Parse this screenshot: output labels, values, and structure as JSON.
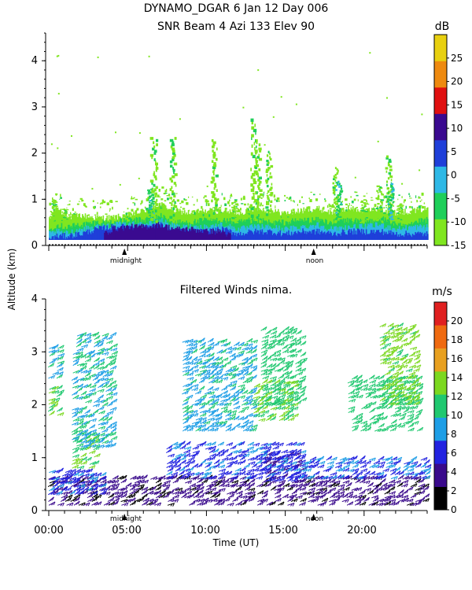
{
  "header": {
    "title_line1": "DYNAMO_DGAR    6 Jan 12 Day 006",
    "title_line2": "SNR Beam 4 Azi 133 Elev 90"
  },
  "shared": {
    "ylabel": "Altitude (km)",
    "xlabel": "Time (UT)",
    "x_tick_labels": [
      "00:00",
      "05:00",
      "10:00",
      "15:00",
      "20:00"
    ],
    "markers": [
      "midnight",
      "noon"
    ]
  },
  "colors": {
    "snr_scale": [
      "#80e620",
      "#1fcf5a",
      "#2eb8e6",
      "#1f3fd9",
      "#3a0a90",
      "#e01010",
      "#ee8a10",
      "#e8d010"
    ],
    "wind_scale": [
      "#000000",
      "#3a0a8c",
      "#2222e0",
      "#1e9ee6",
      "#20c870",
      "#7cd820",
      "#e8a020",
      "#ef6a10",
      "#e02020"
    ]
  },
  "chart_data": [
    {
      "type": "heatmap",
      "title": "SNR Beam 4 Azi 133 Elev 90",
      "ylabel": "Altitude (km)",
      "xlim_hours": [
        0,
        24
      ],
      "ylim_km": [
        0,
        4.6
      ],
      "y_ticks": [
        0,
        1,
        2,
        3,
        4
      ],
      "colorbar": {
        "unit": "dB",
        "range": [
          -15,
          30
        ],
        "ticks": [
          -15,
          -10,
          -5,
          0,
          5,
          10,
          15,
          20,
          25
        ]
      },
      "layers": [
        {
          "dB": -15,
          "x": [
            0,
            0.5,
            1,
            2,
            3,
            4,
            5,
            6,
            7,
            8,
            9,
            10,
            11,
            12,
            13,
            14,
            15,
            16,
            17,
            18,
            19,
            20,
            21,
            22,
            23,
            24
          ],
          "top_km": [
            0.55,
            0.85,
            0.6,
            0.65,
            0.6,
            0.6,
            0.65,
            0.75,
            0.9,
            0.75,
            0.7,
            0.75,
            0.75,
            0.7,
            0.8,
            0.75,
            0.7,
            0.75,
            0.8,
            0.7,
            0.8,
            0.75,
            0.8,
            0.7,
            0.75,
            0.8
          ]
        },
        {
          "dB": -10,
          "x": [
            0,
            0.5,
            1,
            2,
            3,
            4,
            5,
            6,
            7,
            8,
            9,
            10,
            11,
            12,
            13,
            14,
            15,
            16,
            17,
            18,
            19,
            20,
            21,
            22,
            23,
            24
          ],
          "top_km": [
            0.35,
            0.45,
            0.4,
            0.45,
            0.5,
            0.5,
            0.55,
            0.55,
            0.65,
            0.5,
            0.5,
            0.55,
            0.55,
            0.5,
            0.55,
            0.5,
            0.5,
            0.55,
            0.55,
            0.5,
            0.55,
            0.5,
            0.6,
            0.45,
            0.5,
            0.55
          ]
        },
        {
          "dB": -5,
          "x": [
            0,
            0.5,
            1,
            2,
            3,
            4,
            5,
            6,
            7,
            8,
            9,
            10,
            11,
            12,
            13,
            14,
            15,
            16,
            17,
            18,
            19,
            20,
            21,
            22,
            23,
            24
          ],
          "top_km": [
            0.25,
            0.3,
            0.25,
            0.35,
            0.4,
            0.45,
            0.45,
            0.45,
            0.55,
            0.4,
            0.4,
            0.4,
            0.45,
            0.35,
            0.4,
            0.4,
            0.35,
            0.4,
            0.45,
            0.35,
            0.4,
            0.4,
            0.45,
            0.35,
            0.4,
            0.4
          ]
        },
        {
          "dB": 0,
          "x": [
            0,
            0.5,
            1,
            2,
            3,
            4,
            5,
            6,
            7,
            8,
            9,
            10,
            11,
            12,
            13,
            14,
            15,
            16,
            17,
            18,
            19,
            20,
            21,
            22,
            23,
            24
          ],
          "top_km": [
            0.15,
            0.2,
            0.2,
            0.25,
            0.35,
            0.4,
            0.4,
            0.4,
            0.45,
            0.3,
            0.3,
            0.3,
            0.35,
            0.25,
            0.3,
            0.3,
            0.25,
            0.3,
            0.3,
            0.25,
            0.3,
            0.3,
            0.3,
            0.25,
            0.25,
            0.25
          ]
        },
        {
          "dB": 5,
          "x": [
            3.5,
            4,
            5,
            6,
            7,
            8,
            9,
            10,
            11,
            11.5
          ],
          "top_km": [
            0.25,
            0.35,
            0.4,
            0.4,
            0.45,
            0.35,
            0.35,
            0.3,
            0.3,
            0.2
          ]
        }
      ],
      "plumes": [
        {
          "x": 0.3,
          "top_km": 1.0,
          "dB": -15
        },
        {
          "x": 1.0,
          "top_km": 0.8,
          "dB": -15
        },
        {
          "x": 6.5,
          "top_km": 1.25,
          "dB": -10
        },
        {
          "x": 6.7,
          "top_km": 2.35,
          "dB": -15
        },
        {
          "x": 7.9,
          "top_km": 2.35,
          "dB": -15
        },
        {
          "x": 10.5,
          "top_km": 2.3,
          "dB": -15
        },
        {
          "x": 11.8,
          "top_km": 1.0,
          "dB": -15
        },
        {
          "x": 13.0,
          "top_km": 2.75,
          "dB": -15
        },
        {
          "x": 13.3,
          "top_km": 2.3,
          "dB": -15
        },
        {
          "x": 14.0,
          "top_km": 2.05,
          "dB": -15
        },
        {
          "x": 18.2,
          "top_km": 1.7,
          "dB": -15
        },
        {
          "x": 18.4,
          "top_km": 1.4,
          "dB": -10
        },
        {
          "x": 20.0,
          "top_km": 1.0,
          "dB": -15
        },
        {
          "x": 21.0,
          "top_km": 1.3,
          "dB": -15
        },
        {
          "x": 21.6,
          "top_km": 1.95,
          "dB": -15
        },
        {
          "x": 21.7,
          "top_km": 1.35,
          "dB": -10
        },
        {
          "x": 22.3,
          "top_km": 0.9,
          "dB": -15
        }
      ]
    },
    {
      "type": "scatter",
      "title": "Filtered Winds nima.",
      "xlabel": "Time (UT)",
      "ylabel": "Altitude (km)",
      "xlim_hours": [
        0,
        24
      ],
      "ylim_km": [
        0,
        4
      ],
      "y_ticks": [
        0,
        1,
        2,
        3,
        4
      ],
      "colorbar": {
        "unit": "m/s",
        "range": [
          0,
          22
        ],
        "ticks": [
          0,
          2,
          4,
          6,
          8,
          10,
          12,
          14,
          16,
          18,
          20
        ]
      },
      "wind_bands": [
        {
          "x_range": [
            0,
            24
          ],
          "alt_range": [
            0.1,
            0.6
          ],
          "speed_range": [
            2,
            5
          ]
        },
        {
          "x_range": [
            0,
            3.5
          ],
          "alt_range": [
            0.3,
            0.75
          ],
          "speed_range": [
            6,
            8
          ]
        },
        {
          "x_range": [
            13.5,
            16
          ],
          "alt_range": [
            0.55,
            1.05
          ],
          "speed_range": [
            4,
            6
          ]
        },
        {
          "x_range": [
            7.5,
            16
          ],
          "alt_range": [
            0.6,
            1.25
          ],
          "speed_range": [
            6,
            8
          ]
        },
        {
          "x_range": [
            16,
            24
          ],
          "alt_range": [
            0.6,
            1.0
          ],
          "speed_range": [
            6,
            9
          ]
        },
        {
          "x_range": [
            1.5,
            3.0
          ],
          "alt_range": [
            0.8,
            1.5
          ],
          "speed_range": [
            12,
            13
          ]
        },
        {
          "x_range": [
            0,
            0.8
          ],
          "alt_range": [
            1.8,
            2.3
          ],
          "speed_range": [
            12,
            13
          ]
        },
        {
          "x_range": [
            0,
            0.8
          ],
          "alt_range": [
            2.5,
            3.1
          ],
          "speed_range": [
            9,
            11
          ]
        },
        {
          "x_range": [
            1.5,
            4.0
          ],
          "alt_range": [
            1.2,
            3.3
          ],
          "speed_range": [
            9,
            11
          ]
        },
        {
          "x_range": [
            8.5,
            13
          ],
          "alt_range": [
            1.5,
            3.2
          ],
          "speed_range": [
            8,
            11
          ]
        },
        {
          "x_range": [
            13.5,
            16
          ],
          "alt_range": [
            2.0,
            3.4
          ],
          "speed_range": [
            10,
            11
          ]
        },
        {
          "x_range": [
            13.0,
            15.5
          ],
          "alt_range": [
            1.7,
            2.4
          ],
          "speed_range": [
            12,
            13
          ]
        },
        {
          "x_range": [
            19,
            23.5
          ],
          "alt_range": [
            1.5,
            2.5
          ],
          "speed_range": [
            10,
            12
          ]
        },
        {
          "x_range": [
            21.0,
            23.3
          ],
          "alt_range": [
            2.0,
            3.5
          ],
          "speed_range": [
            12,
            14
          ]
        }
      ]
    }
  ]
}
